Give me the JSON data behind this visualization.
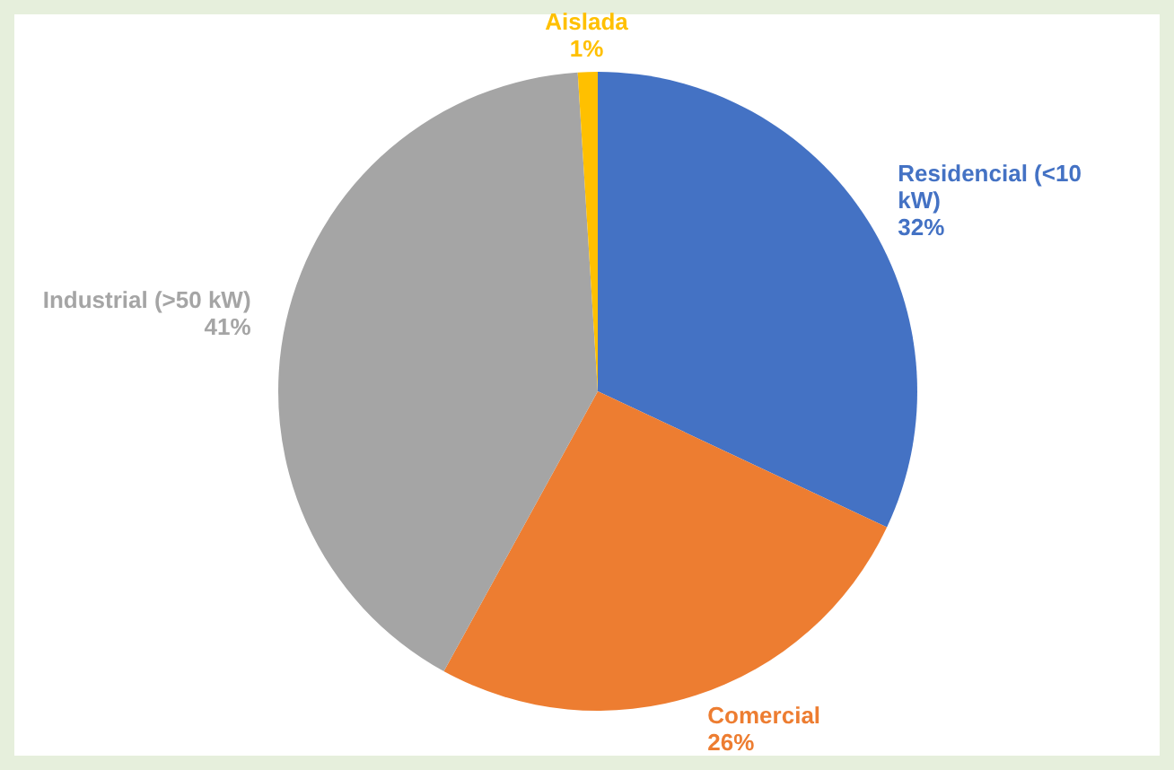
{
  "chart_data": {
    "type": "pie",
    "categories": [
      "Residencial (<10 kW)",
      "Comercial",
      "Industrial (>50 kW)",
      "Aislada"
    ],
    "values": [
      32,
      26,
      41,
      1
    ],
    "colors": [
      "#4472c4",
      "#ed7d31",
      "#a5a5a5",
      "#ffc000"
    ],
    "value_labels": [
      "32%",
      "26%",
      "41%",
      "1%"
    ]
  }
}
